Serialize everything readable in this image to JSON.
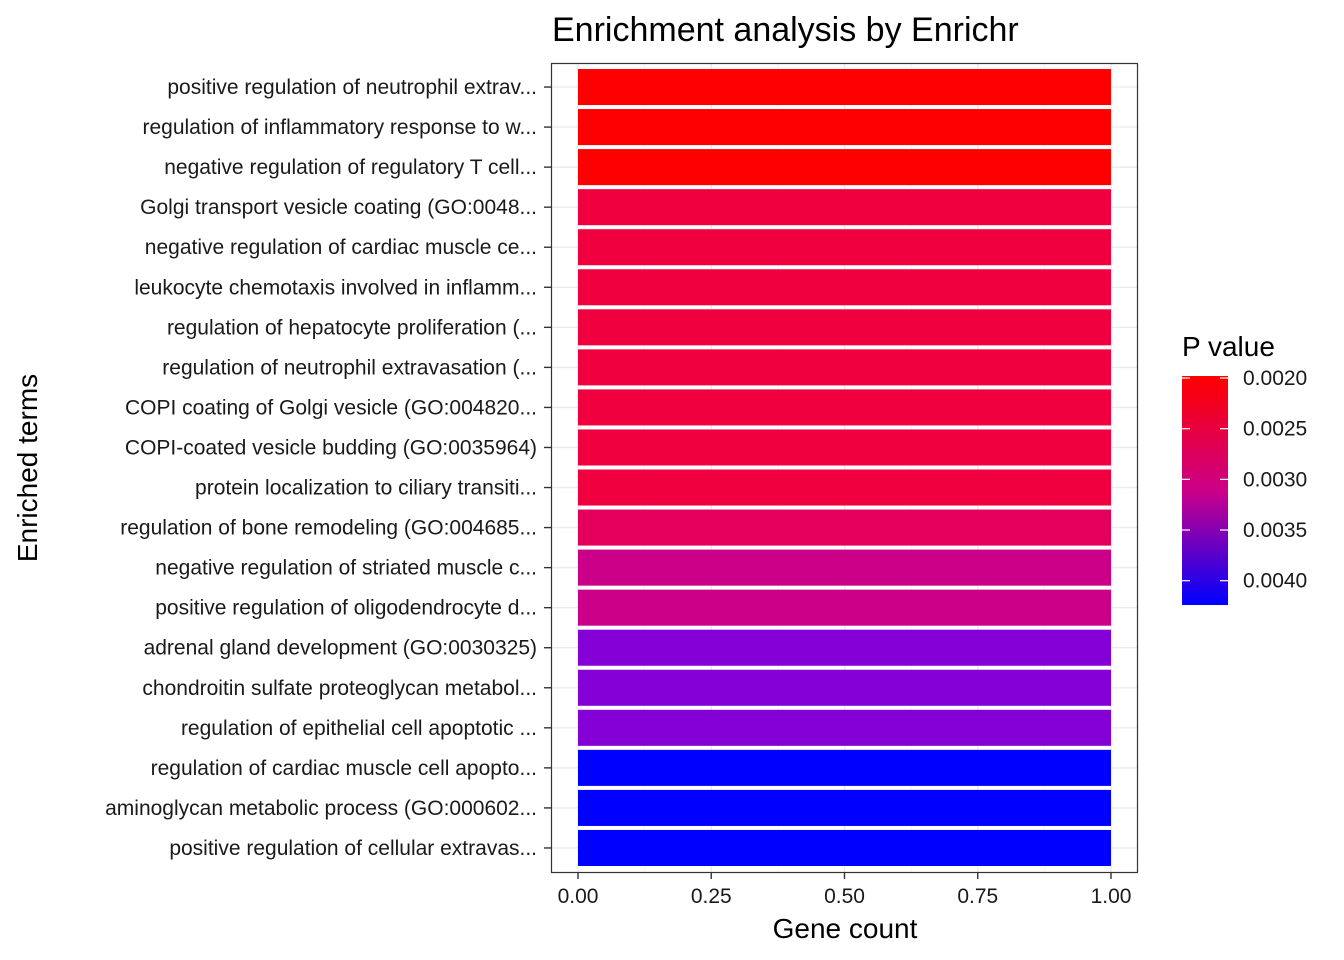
{
  "chart_data": {
    "type": "bar",
    "orientation": "horizontal",
    "title": "Enrichment analysis by Enrichr",
    "xlabel": "Gene count",
    "ylabel": "Enriched terms",
    "xlim": [
      0,
      1
    ],
    "x_ticks": [
      "0.00",
      "0.25",
      "0.50",
      "0.75",
      "1.00"
    ],
    "x_tick_values": [
      0,
      0.25,
      0.5,
      0.75,
      1
    ],
    "grid": true,
    "legend_position": "right",
    "legend": {
      "title": "P value",
      "labels": [
        "0.0020",
        "0.0025",
        "0.0030",
        "0.0035",
        "0.0040"
      ],
      "values": [
        0.002,
        0.0025,
        0.003,
        0.0035,
        0.004
      ],
      "range": [
        0.00198,
        0.00424
      ],
      "low_color": "#ff0000",
      "high_color": "#0000ff"
    },
    "categories": [
      "positive regulation of neutrophil extrav...",
      "regulation of inflammatory response to w...",
      "negative regulation of regulatory T cell...",
      "Golgi transport vesicle coating (GO:0048...",
      "negative regulation of cardiac muscle ce...",
      "leukocyte chemotaxis involved in inflamm...",
      "regulation of hepatocyte proliferation (...",
      "regulation of neutrophil extravasation (...",
      "COPI coating of Golgi vesicle (GO:004820...",
      "COPI-coated vesicle budding (GO:0035964)",
      "protein localization to ciliary transiti...",
      "regulation of bone remodeling (GO:004685...",
      "negative regulation of striated muscle c...",
      "positive regulation of oligodendrocyte d...",
      "adrenal gland development (GO:0030325)",
      "chondroitin sulfate proteoglycan metabol...",
      "regulation of epithelial cell apoptotic ...",
      "regulation of cardiac muscle cell apopto...",
      "aminoglycan metabolic process (GO:000602...",
      "positive regulation of cellular extravas..."
    ],
    "values": [
      1,
      1,
      1,
      1,
      1,
      1,
      1,
      1,
      1,
      1,
      1,
      1,
      1,
      1,
      1,
      1,
      1,
      1,
      1,
      1
    ],
    "p_values": [
      0.00198,
      0.00198,
      0.00198,
      0.00245,
      0.00245,
      0.00245,
      0.00245,
      0.00245,
      0.00245,
      0.00245,
      0.00245,
      0.00272,
      0.0031,
      0.0031,
      0.0036,
      0.0036,
      0.0036,
      0.00424,
      0.00424,
      0.00424
    ],
    "colors": [
      "#ff0000",
      "#ff0000",
      "#ff0000",
      "#f0003e",
      "#f0003e",
      "#f0003e",
      "#f0003e",
      "#f0003e",
      "#f0003e",
      "#f0003e",
      "#f0003e",
      "#e4005a",
      "#cc0088",
      "#cc0088",
      "#8500d6",
      "#8500d6",
      "#8500d6",
      "#0000ff",
      "#0000ff",
      "#0000ff"
    ]
  }
}
